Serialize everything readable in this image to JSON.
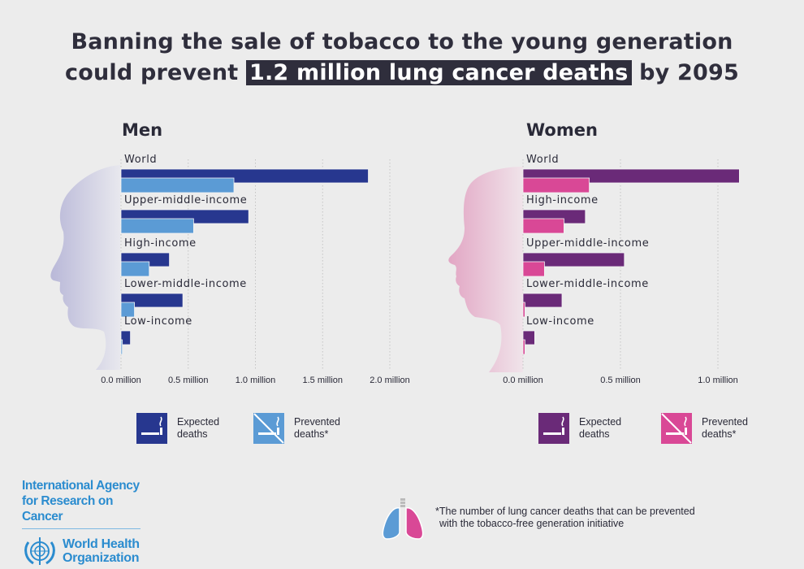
{
  "title": {
    "line1": "Banning the sale of tobacco to the young generation",
    "line2_prefix": "could prevent",
    "line2_highlight": "1.2 million lung cancer deaths",
    "line2_suffix": "by 2095"
  },
  "colors": {
    "men_expected": "#27378f",
    "men_prevented": "#5b9bd5",
    "women_expected": "#6a2a78",
    "women_prevented": "#d94896",
    "title_highlight_bg": "#2f2e3c",
    "brand_blue": "#2b8ccf"
  },
  "chart_data": [
    {
      "type": "bar",
      "orientation": "horizontal",
      "title": "Men",
      "categories": [
        "World",
        "Upper-middle-income",
        "High-income",
        "Lower-middle-income",
        "Low-income"
      ],
      "series": [
        {
          "name": "Expected deaths",
          "values": [
            1.84,
            0.95,
            0.36,
            0.46,
            0.07
          ]
        },
        {
          "name": "Prevented deaths*",
          "values": [
            0.84,
            0.54,
            0.21,
            0.1,
            0.01
          ]
        }
      ],
      "xlim": [
        0,
        2.0
      ],
      "xticks": [
        "0.0 million",
        "0.5 million",
        "1.0 million",
        "1.5 million",
        "2.0 million"
      ],
      "xtick_values": [
        0,
        0.5,
        1.0,
        1.5,
        2.0
      ],
      "unit": "million",
      "grid": true,
      "legend": "bottom"
    },
    {
      "type": "bar",
      "orientation": "horizontal",
      "title": "Women",
      "categories": [
        "World",
        "High-income",
        "Upper-middle-income",
        "Lower-middle-income",
        "Low-income"
      ],
      "series": [
        {
          "name": "Expected deaths",
          "values": [
            1.11,
            0.32,
            0.52,
            0.2,
            0.06
          ]
        },
        {
          "name": "Prevented deaths*",
          "values": [
            0.34,
            0.21,
            0.11,
            0.01,
            0.01
          ]
        }
      ],
      "xlim": [
        0,
        1.0
      ],
      "xticks": [
        "0.0 million",
        "0.5 million",
        "1.0 million"
      ],
      "xtick_values": [
        0,
        0.5,
        1.0
      ],
      "unit": "million",
      "grid": true,
      "legend": "bottom"
    }
  ],
  "legend": {
    "expected_line1": "Expected",
    "expected_line2": "deaths",
    "prevented_line1": "Prevented",
    "prevented_line2": "deaths*",
    "expected_icon": "cigarette-icon",
    "prevented_icon": "no-smoking-icon"
  },
  "logo": {
    "iarc_line1": "International Agency",
    "iarc_line2": "for Research on Cancer",
    "who_line1": "World Health",
    "who_line2": "Organization",
    "who_icon": "who-emblem-icon"
  },
  "footnote": {
    "icon": "lungs-icon",
    "line1": "*The number of lung cancer deaths that can be prevented",
    "line2": "with the tobacco-free generation initiative"
  }
}
